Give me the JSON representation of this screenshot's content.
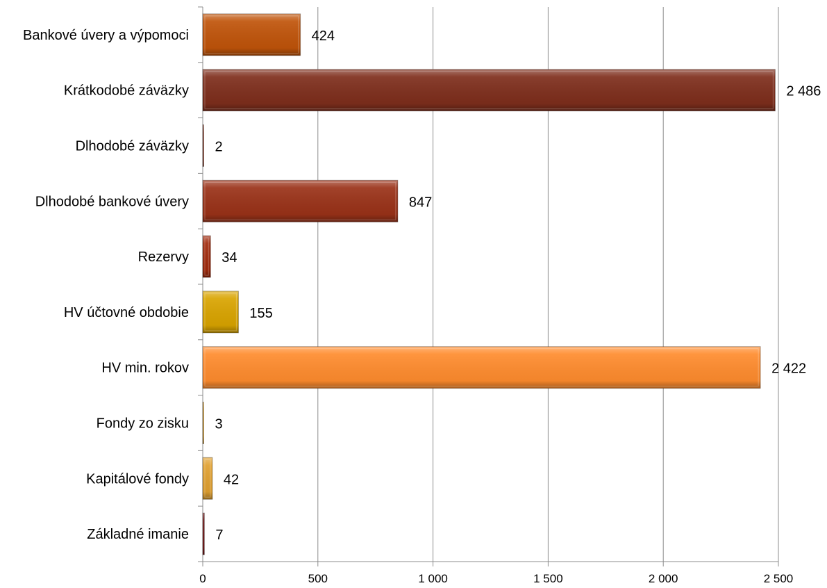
{
  "chart_data": {
    "type": "bar",
    "orientation": "horizontal",
    "categories": [
      "Bankové úvery a výpomoci",
      "Krátkodobé záväzky",
      "Dlhodobé záväzky",
      "Dlhodobé bankové úvery",
      "Rezervy",
      "HV účtovné obdobie",
      "HV min. rokov",
      "Fondy zo zisku",
      "Kapitálové fondy",
      "Základné  imanie"
    ],
    "values": [
      424,
      2486,
      2,
      847,
      34,
      155,
      2422,
      3,
      42,
      7
    ],
    "value_labels": [
      "424",
      "2 486",
      "2",
      "847",
      "34",
      "155",
      "2 422",
      "3",
      "42",
      "7"
    ],
    "colors": [
      "#c0540a",
      "#7e2e1c",
      "#8a3520",
      "#9a3218",
      "#a02a0c",
      "#d9a400",
      "#ff8c2e",
      "#d99a20",
      "#e0a030",
      "#7a1a1a"
    ],
    "xlim": [
      0,
      2500
    ],
    "x_ticks": [
      0,
      500,
      1000,
      1500,
      2000,
      2500
    ],
    "x_tick_labels": [
      "0",
      "500",
      "1 000",
      "1 500",
      "2 000",
      "2 500"
    ],
    "grid": "vertical",
    "legend": "none",
    "title": "",
    "xlabel": "",
    "ylabel": ""
  }
}
